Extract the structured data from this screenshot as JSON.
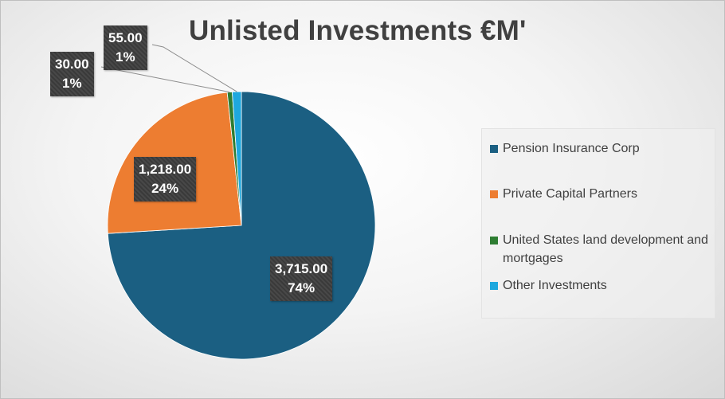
{
  "chart_data": {
    "type": "pie",
    "title": "Unlisted Investments  €M'",
    "categories": [
      "Pension Insurance Corp",
      "Private Capital Partners",
      "United States land development and mortgages",
      "Other Investments"
    ],
    "values": [
      3715.0,
      1218.0,
      30.0,
      55.0
    ],
    "value_labels": [
      "3,715.00",
      "1,218.00",
      "30.00",
      "55.00"
    ],
    "percent_labels": [
      "74%",
      "24%",
      "1%",
      "1%"
    ],
    "colors": [
      "#1b5f82",
      "#ed7d31",
      "#2e7d32",
      "#1ea8de"
    ],
    "legend_position": "right",
    "start_angle_deg": 0,
    "direction": "clockwise"
  }
}
